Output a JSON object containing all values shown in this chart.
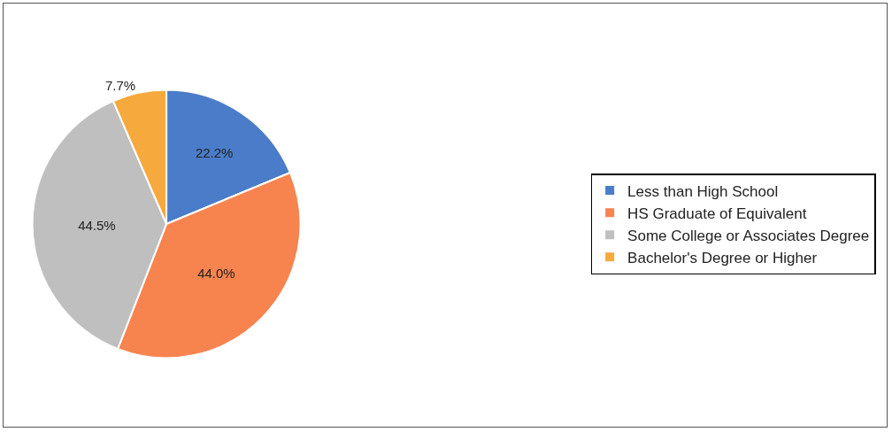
{
  "chart_data": {
    "type": "pie",
    "categories": [
      "Less than High School",
      "HS Graduate of Equivalent",
      "Some College or Associates Degree",
      "Bachelor's Degree or Higher"
    ],
    "values": [
      22.2,
      44.0,
      44.5,
      7.7
    ],
    "value_labels": [
      "22.2%",
      "44.0%",
      "44.5%",
      "7.7%"
    ],
    "colors": [
      "#4a7cc9",
      "#f7834f",
      "#bfbfbf",
      "#f6a93c"
    ],
    "legend": "right"
  }
}
